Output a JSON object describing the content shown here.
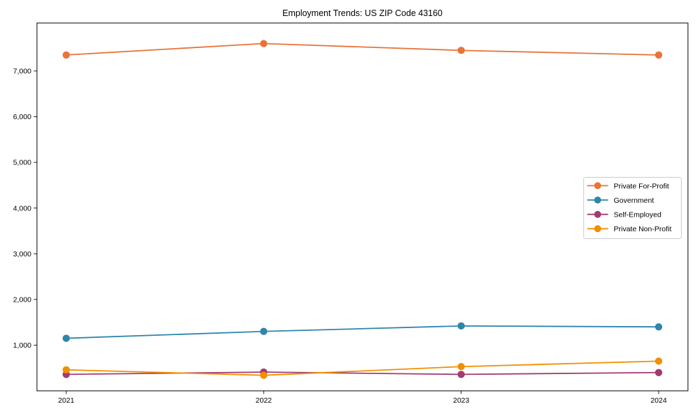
{
  "chart_data": {
    "type": "line",
    "title": "Employment Trends: US ZIP Code 43160",
    "categories": [
      "2021",
      "2022",
      "2023",
      "2024"
    ],
    "series": [
      {
        "name": "Private For-Profit",
        "color": "#E8743B",
        "values": [
          7350,
          7600,
          7450,
          7350
        ]
      },
      {
        "name": "Government",
        "color": "#2E86AB",
        "values": [
          1150,
          1300,
          1420,
          1400
        ]
      },
      {
        "name": "Self-Employed",
        "color": "#A23B72",
        "values": [
          360,
          410,
          360,
          400
        ]
      },
      {
        "name": "Private Non-Profit",
        "color": "#F18F01",
        "values": [
          460,
          340,
          530,
          650
        ]
      }
    ],
    "xlabel": "",
    "ylabel": "",
    "ylim": [
      0,
      8050
    ],
    "yticks": [
      1000,
      2000,
      3000,
      4000,
      5000,
      6000,
      7000
    ],
    "ytick_labels": [
      "1,000",
      "2,000",
      "3,000",
      "4,000",
      "5,000",
      "6,000",
      "7,000"
    ],
    "grid": false,
    "legend_position": "right-middle",
    "marker": "circle",
    "colors": {
      "spine": "#000000",
      "tick_label": "#000000",
      "legend_border": "#cccccc",
      "background": "#ffffff"
    }
  }
}
